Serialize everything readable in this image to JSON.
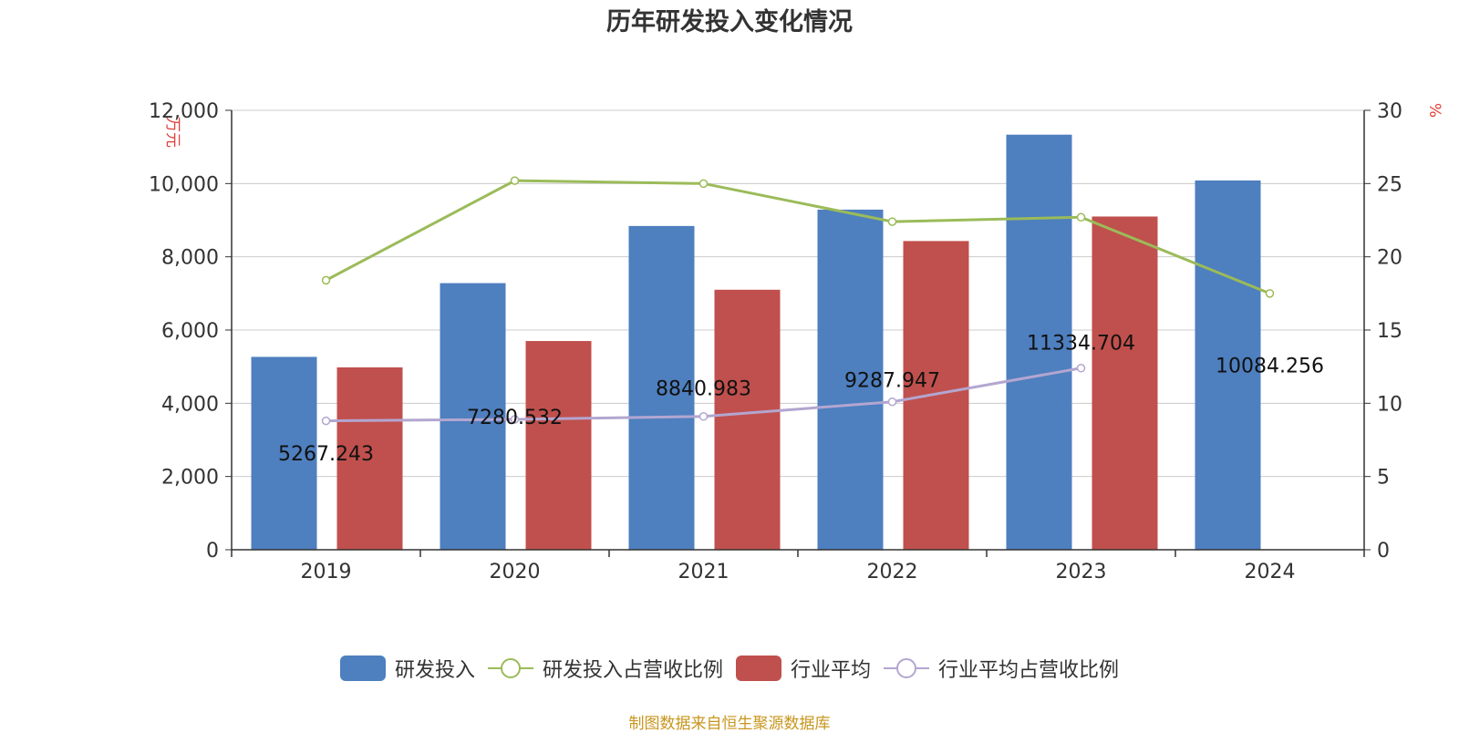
{
  "title": "历年研发投入变化情况",
  "source": "制图数据来自恒生聚源数据库",
  "chart_data": {
    "type": "bar",
    "categories": [
      "2019",
      "2020",
      "2021",
      "2022",
      "2023",
      "2024"
    ],
    "left_axis": {
      "unit": "万元",
      "ylim": [
        0,
        12000
      ],
      "ticks": [
        "0",
        "2,000",
        "4,000",
        "6,000",
        "8,000",
        "10,000",
        "12,000"
      ]
    },
    "right_axis": {
      "unit": "%",
      "ylim": [
        0,
        30
      ],
      "ticks": [
        "0",
        "5",
        "10",
        "15",
        "20",
        "25",
        "30"
      ]
    },
    "series": [
      {
        "name": "研发投入",
        "kind": "bar",
        "axis": "left",
        "color": "#4e7fbf",
        "values": [
          5267.243,
          7280.532,
          8840.983,
          9287.947,
          11334.704,
          10084.256
        ],
        "labels": [
          "5267.243",
          "7280.532",
          "8840.983",
          "9287.947",
          "11334.704",
          "10084.256"
        ]
      },
      {
        "name": "研发投入占营收比例",
        "kind": "line",
        "axis": "right",
        "color": "#9bbb59",
        "values": [
          18.4,
          25.2,
          25.0,
          22.4,
          22.7,
          17.5
        ]
      },
      {
        "name": "行业平均",
        "kind": "bar",
        "axis": "left",
        "color": "#c0504d",
        "values": [
          4980,
          5700,
          7100,
          8430,
          9100,
          null
        ]
      },
      {
        "name": "行业平均占营收比例",
        "kind": "line",
        "axis": "right",
        "color": "#b3a6d0",
        "values": [
          8.8,
          8.9,
          9.1,
          10.1,
          12.4,
          null
        ]
      }
    ],
    "grid": true,
    "legend_position": "bottom"
  }
}
